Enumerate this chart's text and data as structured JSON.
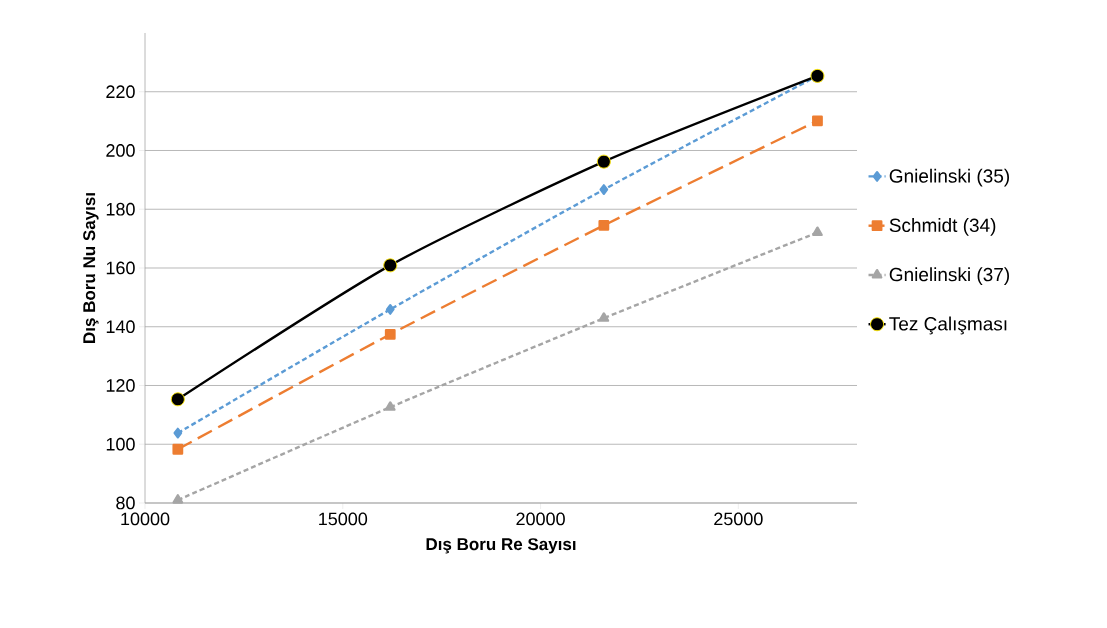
{
  "chart_data": {
    "type": "line",
    "xlabel": "Dış Boru Re Sayısı",
    "ylabel": "Dış Boru Nu Sayısı",
    "x": [
      10830,
      16200,
      21600,
      27000
    ],
    "xlim": [
      10000,
      28000
    ],
    "xticks": [
      10000,
      15000,
      20000,
      25000
    ],
    "ylim": [
      80,
      240
    ],
    "yticks": [
      80,
      100,
      120,
      140,
      160,
      180,
      200,
      220
    ],
    "grid": "y",
    "legend": "right",
    "series": [
      {
        "name": "Gnielinski (35)",
        "color": "#5b9bd5",
        "values": [
          103.8,
          145.9,
          186.7,
          225.4
        ],
        "marker": "diamond",
        "line_style": "dotted"
      },
      {
        "name": "Schmidt (34)",
        "color": "#ed7d31",
        "values": [
          98.3,
          137.4,
          174.5,
          210.1
        ],
        "marker": "square",
        "line_style": "dashed"
      },
      {
        "name": "Gnielinski (37)",
        "color": "#a5a5a5",
        "values": [
          81,
          112.6,
          142.9,
          172.1
        ],
        "marker": "triangle",
        "line_style": "dotted"
      },
      {
        "name": "Tez Çalışması",
        "color": "#000000",
        "values": [
          115.3,
          160.9,
          196.2,
          225.4
        ],
        "marker": "circle",
        "line_style": "solid"
      }
    ]
  }
}
